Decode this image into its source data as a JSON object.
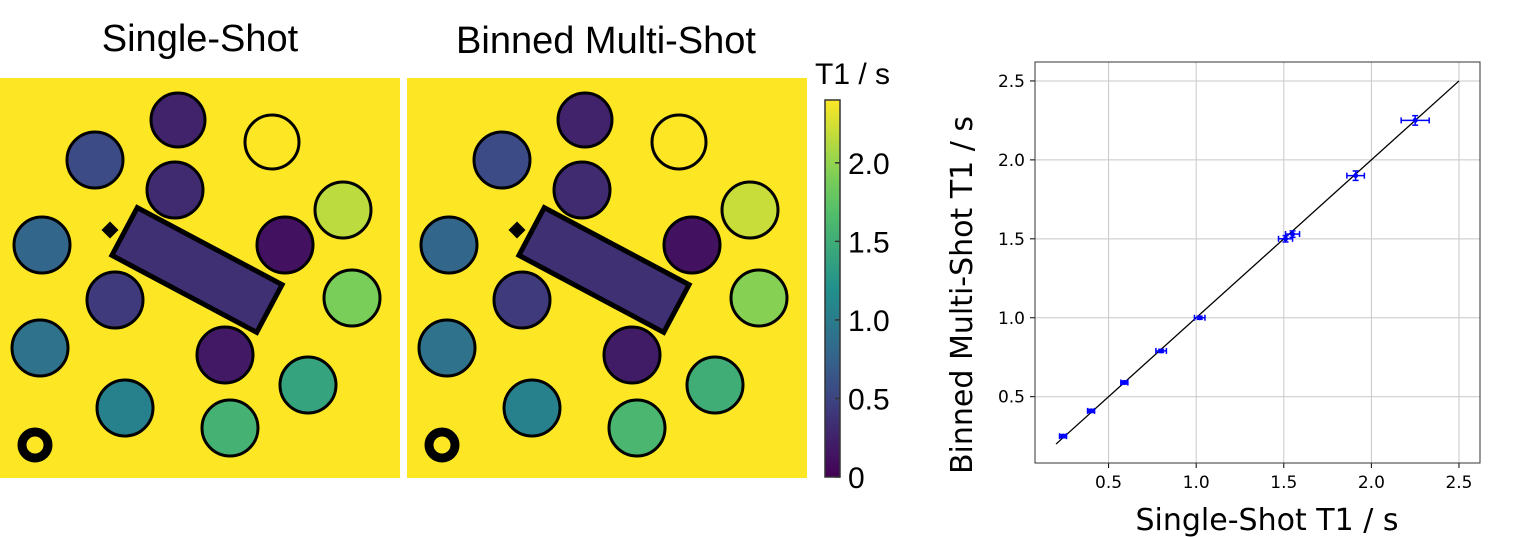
{
  "maps": {
    "left_title": "Single-Shot",
    "right_title": "Binned Multi-Shot",
    "background_color": "#fde725",
    "colorbar": {
      "label": "T1 / s",
      "range": [
        0,
        2.4
      ],
      "colormap": "viridis",
      "ticks": [
        0,
        0.5,
        1.0,
        1.5,
        2.0
      ],
      "tick_labels": [
        "0",
        "0.5",
        "1.0",
        "1.5",
        "2.0"
      ]
    },
    "vial_t1_single": [
      0.25,
      2.5,
      0.55,
      0.3,
      2.15,
      0.8,
      0.12,
      1.9,
      0.42,
      0.9,
      0.18,
      1.4,
      1.05,
      1.55
    ],
    "vial_t1_multi": [
      0.25,
      2.5,
      0.55,
      0.3,
      2.2,
      0.8,
      0.12,
      1.95,
      0.42,
      0.9,
      0.2,
      1.5,
      1.05,
      1.6
    ],
    "bar_t1": 0.35
  },
  "chart_data": {
    "type": "scatter",
    "xlabel": "Single-Shot T1 / s",
    "ylabel": "Binned Multi-Shot  T1 / s",
    "xlim": [
      0.08,
      2.62
    ],
    "ylim": [
      0.08,
      2.62
    ],
    "grid": true,
    "xticks": [
      0.5,
      1.0,
      1.5,
      2.0,
      2.5
    ],
    "xtick_labels": [
      "0.5",
      "1.0",
      "1.5",
      "2.0",
      "2.5"
    ],
    "yticks": [
      0.5,
      1.0,
      1.5,
      2.0,
      2.5
    ],
    "ytick_labels": [
      "0.5",
      "1.0",
      "1.5",
      "2.0",
      "2.5"
    ],
    "identity_line": {
      "from": 0.2,
      "to": 2.5,
      "color": "#000000"
    },
    "marker_color": "#0000ff",
    "points": [
      {
        "x": 0.24,
        "y": 0.25,
        "xerr": 0.02,
        "yerr": 0.01
      },
      {
        "x": 0.4,
        "y": 0.41,
        "xerr": 0.02,
        "yerr": 0.01
      },
      {
        "x": 0.59,
        "y": 0.59,
        "xerr": 0.02,
        "yerr": 0.01
      },
      {
        "x": 0.8,
        "y": 0.79,
        "xerr": 0.03,
        "yerr": 0.01
      },
      {
        "x": 1.02,
        "y": 1.0,
        "xerr": 0.03,
        "yerr": 0.01
      },
      {
        "x": 1.51,
        "y": 1.5,
        "xerr": 0.04,
        "yerr": 0.02
      },
      {
        "x": 1.55,
        "y": 1.53,
        "xerr": 0.04,
        "yerr": 0.02
      },
      {
        "x": 1.91,
        "y": 1.9,
        "xerr": 0.05,
        "yerr": 0.03
      },
      {
        "x": 2.25,
        "y": 2.25,
        "xerr": 0.08,
        "yerr": 0.03
      }
    ]
  }
}
